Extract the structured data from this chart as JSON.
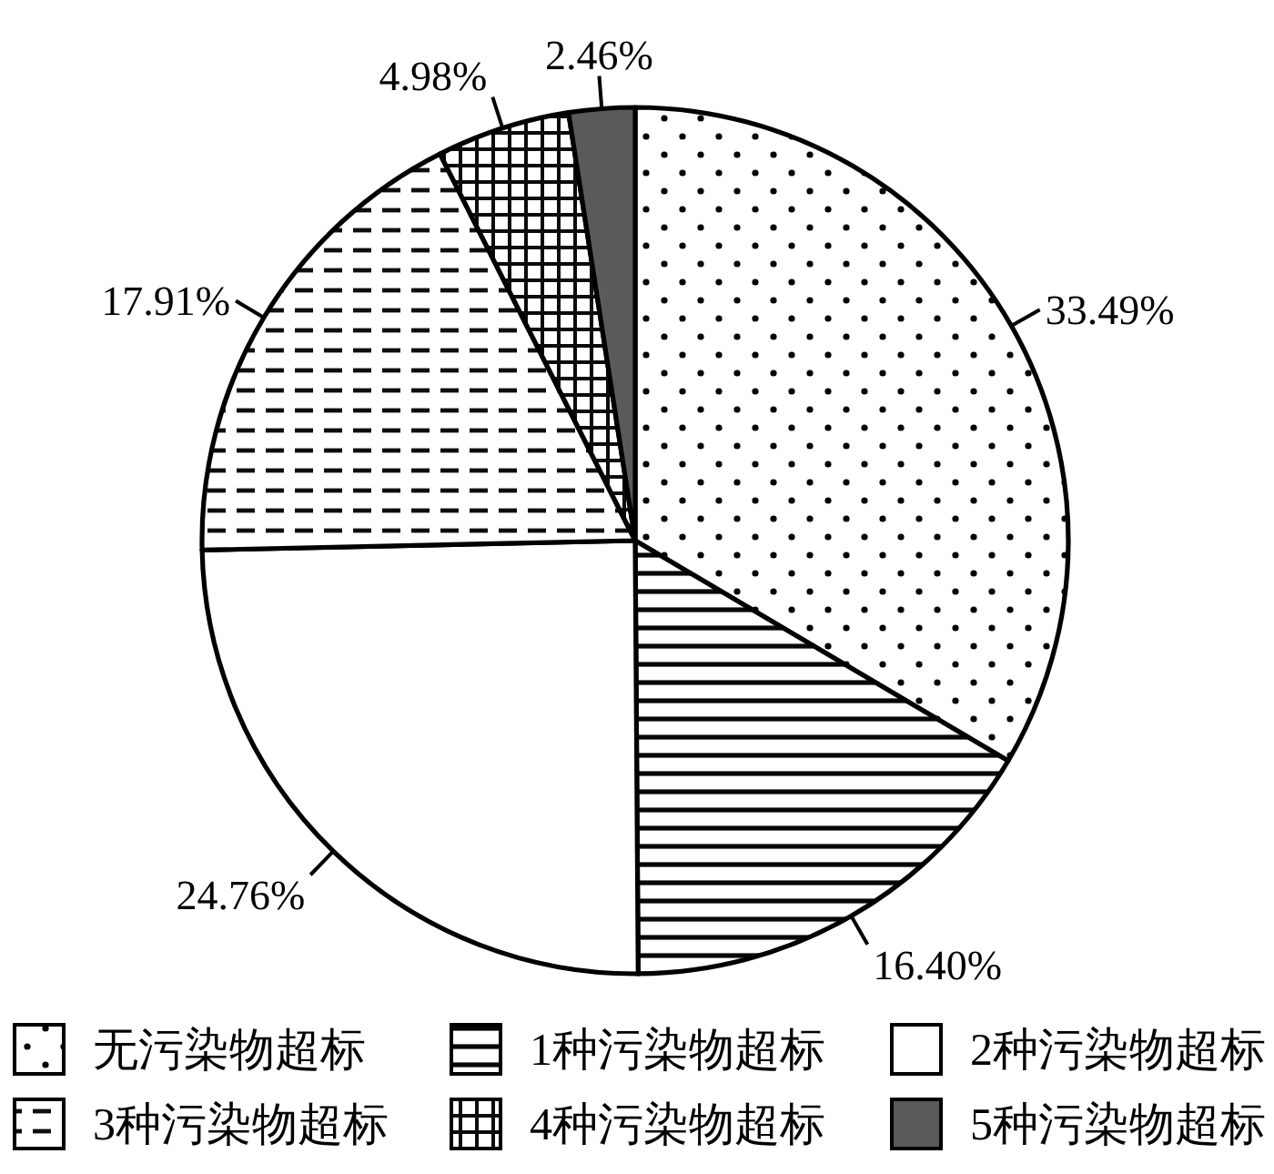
{
  "chart_data": {
    "type": "pie",
    "categories": [
      "无污染物超标",
      "1种污染物超标",
      "2种污染物超标",
      "3种污染物超标",
      "4种污染物超标",
      "5种污染物超标"
    ],
    "values": [
      33.49,
      16.4,
      24.76,
      17.91,
      4.98,
      2.46
    ],
    "value_labels": [
      "33.49%",
      "16.40%",
      "24.76%",
      "17.91%",
      "4.98%",
      "2.46%"
    ],
    "colors": [
      "#000000",
      "#070707",
      "#ffffff",
      "#0e0e0e",
      "#0b0b0b",
      "#5a5a5a"
    ],
    "legend": "bottom"
  }
}
